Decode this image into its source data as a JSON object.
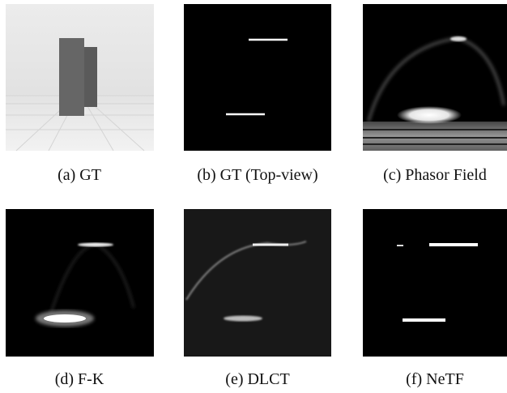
{
  "figure": {
    "panels": [
      {
        "caption": "(a) GT"
      },
      {
        "caption": "(b) GT (Top-view)"
      },
      {
        "caption": "(c) Phasor Field"
      },
      {
        "caption": "(d) F-K"
      },
      {
        "caption": "(e) DLCT"
      },
      {
        "caption": "(f) NeTF"
      }
    ]
  }
}
